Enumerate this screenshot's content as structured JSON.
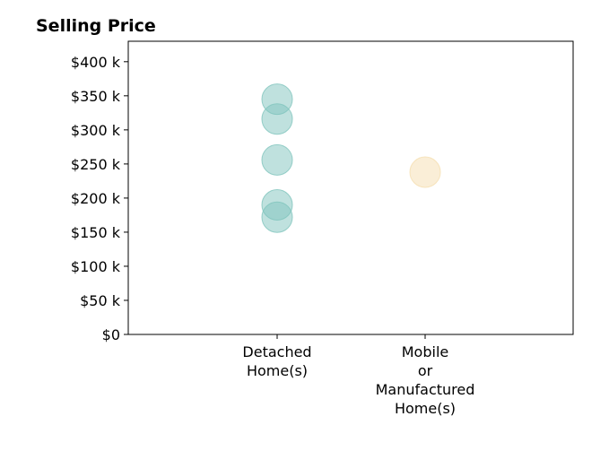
{
  "chart_data": {
    "type": "scatter",
    "title": "Selling Price",
    "xlabel": "",
    "ylabel": "",
    "categories": [
      [
        "Detached",
        "Home(s)"
      ],
      [
        "Mobile",
        "or",
        "Manufactured",
        "Home(s)"
      ]
    ],
    "ylim": [
      0,
      430000
    ],
    "yticks": [
      {
        "value": 0,
        "label": "$0"
      },
      {
        "value": 50000,
        "label": "$50 k"
      },
      {
        "value": 100000,
        "label": "$100 k"
      },
      {
        "value": 150000,
        "label": "$150 k"
      },
      {
        "value": 200000,
        "label": "$200 k"
      },
      {
        "value": 250000,
        "label": "$250 k"
      },
      {
        "value": 300000,
        "label": "$300 k"
      },
      {
        "value": 350000,
        "label": "$350 k"
      },
      {
        "value": 400000,
        "label": "$400 k"
      }
    ],
    "grid": false,
    "legend": "none",
    "series": [
      {
        "category": 0,
        "color": "#7fc4bd",
        "values": [
          345000,
          316000,
          256000,
          190000,
          172000
        ]
      },
      {
        "category": 1,
        "color": "#f5deb0",
        "values": [
          238000
        ]
      }
    ]
  }
}
